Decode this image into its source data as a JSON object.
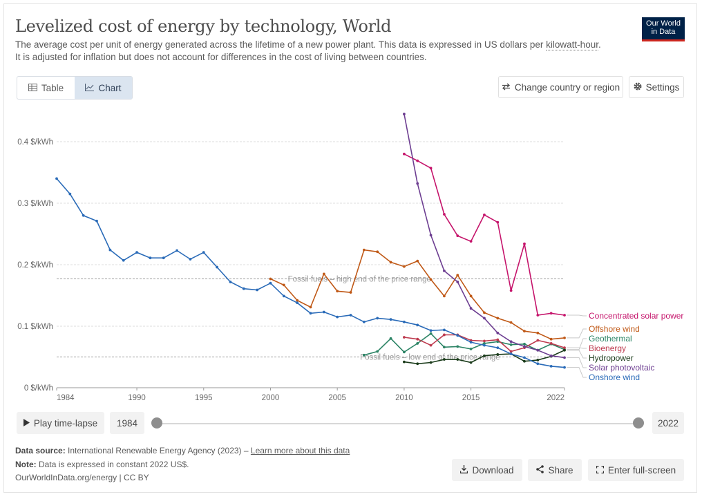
{
  "header": {
    "title": "Levelized cost of energy by technology, World",
    "subtitle_pre": "The average cost per unit of energy generated across the lifetime of a new power plant. This data is expressed in US dollars per ",
    "subtitle_link": "kilowatt-hour",
    "subtitle_post": ".",
    "subtitle_line2": "It is adjusted for inflation but does not account for differences in the cost of living between countries.",
    "logo_line1": "Our World",
    "logo_line2": "in Data"
  },
  "tabs": {
    "table": "Table",
    "chart": "Chart"
  },
  "toolbar": {
    "change_region": "Change country or region",
    "settings": "Settings"
  },
  "timeline": {
    "play": "Play time-lapse",
    "start": "1984",
    "end": "2022"
  },
  "footer": {
    "source_label": "Data source:",
    "source_text": "International Renewable Energy Agency (2023) – ",
    "source_link": "Learn more about this data",
    "note_label": "Note:",
    "note_text": "Data is expressed in constant 2022 US$.",
    "credit": "OurWorldInData.org/energy | CC BY",
    "download": "Download",
    "share": "Share",
    "fullscreen": "Enter full-screen"
  },
  "chart_data": {
    "type": "line",
    "title": "Levelized cost of energy by technology, World",
    "xlabel": "",
    "ylabel": "",
    "xlim": [
      1984,
      2022
    ],
    "ylim": [
      0,
      0.45
    ],
    "y_ticks": [
      0,
      0.1,
      0.2,
      0.3,
      0.4
    ],
    "y_tick_labels": [
      "0 $/kWh",
      "0.1 $/kWh",
      "0.2 $/kWh",
      "0.3 $/kWh",
      "0.4 $/kWh"
    ],
    "x_ticks": [
      1984,
      1990,
      1995,
      2000,
      2005,
      2010,
      2015,
      2022
    ],
    "x_tick_labels": [
      "1984",
      "1990",
      "1995",
      "2000",
      "2005",
      "2010",
      "2015",
      "2022"
    ],
    "reference_lines": [
      {
        "label": "Fossil fuels – high end of the price range",
        "value": 0.177,
        "label_x": 2001.3
      },
      {
        "label": "Fossil fuels – low end of the price range",
        "value": 0.05,
        "label_x": 2006.7
      }
    ],
    "series": [
      {
        "name": "Concentrated solar power",
        "color": "#c5146b",
        "x": [
          2010,
          2011,
          2012,
          2013,
          2014,
          2015,
          2016,
          2017,
          2018,
          2019,
          2020,
          2021,
          2022
        ],
        "values": [
          0.38,
          0.369,
          0.357,
          0.282,
          0.247,
          0.238,
          0.281,
          0.269,
          0.158,
          0.234,
          0.118,
          0.121,
          0.118
        ]
      },
      {
        "name": "Offshore wind",
        "color": "#c05917",
        "x": [
          2000,
          2001,
          2002,
          2003,
          2004,
          2005,
          2006,
          2007,
          2008,
          2009,
          2010,
          2011,
          2012,
          2013,
          2014,
          2015,
          2016,
          2017,
          2018,
          2019,
          2020,
          2021,
          2022
        ],
        "values": [
          0.177,
          0.167,
          0.142,
          0.131,
          0.185,
          0.157,
          0.155,
          0.224,
          0.221,
          0.204,
          0.197,
          0.206,
          0.176,
          0.149,
          0.183,
          0.149,
          0.122,
          0.113,
          0.106,
          0.092,
          0.089,
          0.079,
          0.081
        ]
      },
      {
        "name": "Geothermal",
        "color": "#2c8465",
        "x": [
          2007,
          2008,
          2009,
          2010,
          2011,
          2012,
          2013,
          2014,
          2015,
          2016,
          2017,
          2018,
          2019,
          2020,
          2021,
          2022
        ],
        "values": [
          0.053,
          0.059,
          0.08,
          0.058,
          0.072,
          0.088,
          0.066,
          0.067,
          0.063,
          0.072,
          0.075,
          0.07,
          0.071,
          0.061,
          0.071,
          0.062
        ]
      },
      {
        "name": "Bioenergy",
        "color": "#be3b4f",
        "x": [
          2010,
          2011,
          2012,
          2013,
          2014,
          2015,
          2016,
          2017,
          2018,
          2019,
          2020,
          2021,
          2022
        ],
        "values": [
          0.082,
          0.079,
          0.069,
          0.086,
          0.086,
          0.077,
          0.076,
          0.078,
          0.059,
          0.065,
          0.077,
          0.072,
          0.065
        ]
      },
      {
        "name": "Hydropower",
        "color": "#1a3b1a",
        "x": [
          2010,
          2011,
          2012,
          2013,
          2014,
          2015,
          2016,
          2017,
          2018,
          2019,
          2020,
          2021,
          2022
        ],
        "values": [
          0.042,
          0.039,
          0.041,
          0.046,
          0.046,
          0.041,
          0.052,
          0.054,
          0.055,
          0.043,
          0.045,
          0.051,
          0.061
        ]
      },
      {
        "name": "Solar photovoltaic",
        "color": "#6d3e91",
        "x": [
          2010,
          2011,
          2012,
          2013,
          2014,
          2015,
          2016,
          2017,
          2018,
          2019,
          2020,
          2021,
          2022
        ],
        "values": [
          0.445,
          0.332,
          0.248,
          0.19,
          0.172,
          0.129,
          0.113,
          0.089,
          0.075,
          0.067,
          0.061,
          0.052,
          0.049
        ]
      },
      {
        "name": "Onshore wind",
        "color": "#2a6bb8",
        "x": [
          1984,
          1985,
          1986,
          1987,
          1988,
          1989,
          1990,
          1991,
          1992,
          1993,
          1994,
          1995,
          1996,
          1997,
          1998,
          1999,
          2000,
          2001,
          2002,
          2003,
          2004,
          2005,
          2006,
          2007,
          2008,
          2009,
          2010,
          2011,
          2012,
          2013,
          2014,
          2015,
          2016,
          2017,
          2018,
          2019,
          2020,
          2021,
          2022
        ],
        "values": [
          0.34,
          0.315,
          0.28,
          0.271,
          0.224,
          0.207,
          0.22,
          0.211,
          0.211,
          0.223,
          0.209,
          0.22,
          0.196,
          0.172,
          0.161,
          0.159,
          0.17,
          0.149,
          0.138,
          0.121,
          0.123,
          0.115,
          0.118,
          0.107,
          0.113,
          0.111,
          0.107,
          0.102,
          0.093,
          0.094,
          0.085,
          0.074,
          0.069,
          0.065,
          0.055,
          0.049,
          0.039,
          0.035,
          0.033
        ]
      }
    ],
    "legend": [
      {
        "name": "Concentrated solar power",
        "color": "#c5146b"
      },
      {
        "name": "Offshore wind",
        "color": "#c05917"
      },
      {
        "name": "Geothermal",
        "color": "#2c8465"
      },
      {
        "name": "Bioenergy",
        "color": "#be3b4f"
      },
      {
        "name": "Hydropower",
        "color": "#1a3b1a"
      },
      {
        "name": "Solar photovoltaic",
        "color": "#6d3e91"
      },
      {
        "name": "Onshore wind",
        "color": "#2a6bb8"
      }
    ],
    "legend_placement": "right"
  }
}
